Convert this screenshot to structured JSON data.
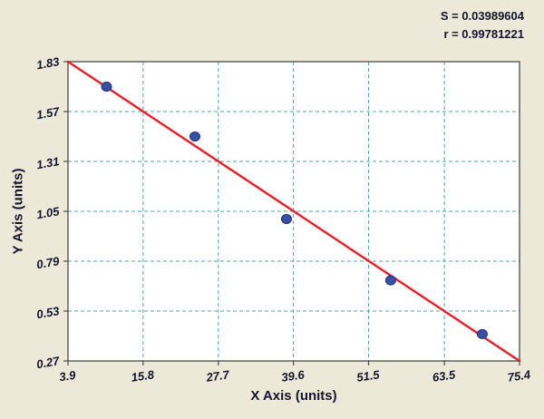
{
  "stats": {
    "s_label": "S = 0.03989604",
    "r_label": "r = 0.99781221"
  },
  "chart_data": {
    "type": "scatter",
    "title": "",
    "xlabel": "X Axis (units)",
    "ylabel": "Y Axis (units)",
    "xlim": [
      3.9,
      75.4
    ],
    "ylim": [
      0.27,
      1.83
    ],
    "x_ticks": [
      "3.9",
      "15.8",
      "27.7",
      "39.6",
      "51.5",
      "63.5",
      "75.4"
    ],
    "y_ticks": [
      "0.27",
      "0.53",
      "0.79",
      "1.05",
      "1.31",
      "1.57",
      "1.83"
    ],
    "grid": "dashed",
    "legend": "none",
    "points": [
      {
        "x": 10.0,
        "y": 1.7
      },
      {
        "x": 24.0,
        "y": 1.44
      },
      {
        "x": 38.5,
        "y": 1.01
      },
      {
        "x": 55.0,
        "y": 0.69
      },
      {
        "x": 69.5,
        "y": 0.41
      }
    ],
    "fit_line": {
      "x1": 3.9,
      "y1": 1.83,
      "x2": 75.4,
      "y2": 0.27
    },
    "annotations": [
      "S = 0.03989604",
      "r = 0.99781221"
    ],
    "colors": {
      "background": "#ece9d8",
      "plot_bg": "#ffffff",
      "grid": "#4da79e",
      "line": "#ee1c25",
      "point_fill": "#3950a5",
      "point_stroke": "#1e2d77",
      "text": "#14142e",
      "border": "#4a4a4a"
    }
  }
}
